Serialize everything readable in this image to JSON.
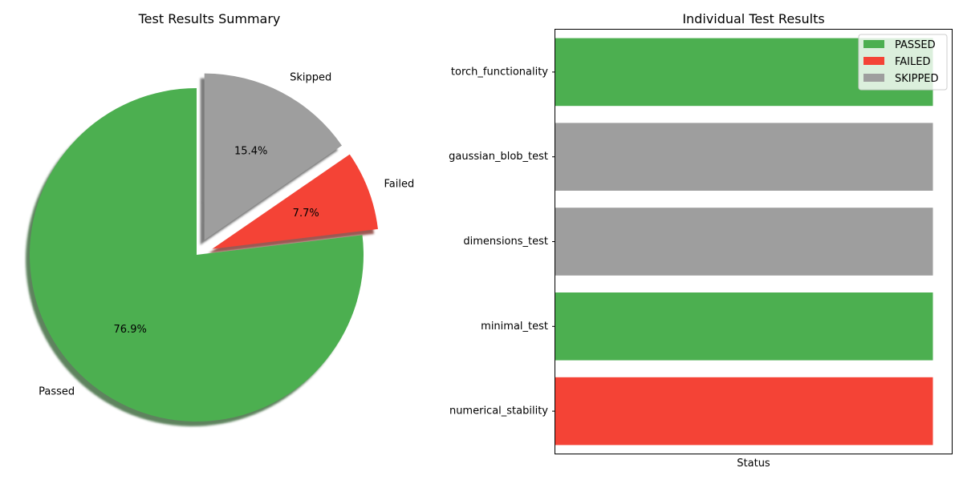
{
  "chart_data": [
    {
      "type": "pie",
      "title": "Test Results Summary",
      "labels": [
        "Passed",
        "Failed",
        "Skipped"
      ],
      "values": [
        76.9,
        7.7,
        15.4
      ],
      "percent_labels": [
        "76.9%",
        "7.7%",
        "15.4%"
      ],
      "exploded": [
        false,
        true,
        true
      ],
      "shadow": true,
      "colors": [
        "#4caf50",
        "#f44336",
        "#9e9e9e"
      ]
    },
    {
      "type": "bar",
      "orientation": "horizontal",
      "title": "Individual Test Results",
      "xlabel": "Status",
      "ylabel": "",
      "categories": [
        "torch_functionality",
        "gaussian_blob_test",
        "dimensions_test",
        "minimal_test",
        "numerical_stability"
      ],
      "values": [
        1,
        1,
        1,
        1,
        1
      ],
      "status": [
        "PASSED",
        "SKIPPED",
        "SKIPPED",
        "PASSED",
        "FAILED"
      ],
      "xlim": [
        0,
        1.05
      ],
      "x_ticks_visible": false,
      "legend": {
        "placement": "top-right",
        "entries": [
          {
            "label": "PASSED",
            "color": "#4caf50"
          },
          {
            "label": "FAILED",
            "color": "#f44336"
          },
          {
            "label": "SKIPPED",
            "color": "#9e9e9e"
          }
        ]
      }
    }
  ]
}
